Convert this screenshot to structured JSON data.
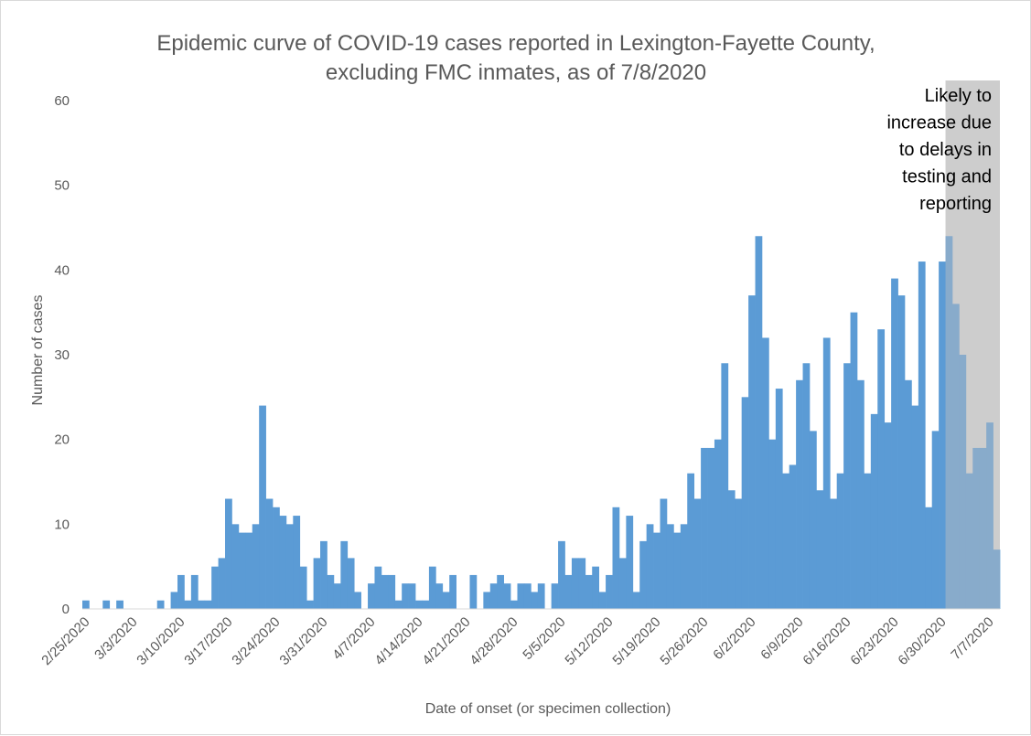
{
  "chart_data": {
    "type": "bar",
    "title_lines": [
      "Epidemic curve of COVID-19 cases reported in Lexington-Fayette County,",
      "excluding FMC inmates, as of 7/8/2020"
    ],
    "xlabel": "Date of onset (or specimen collection)",
    "ylabel": "Number of cases",
    "ylim": [
      0,
      60
    ],
    "y_ticks": [
      "0",
      "10",
      "20",
      "30",
      "40",
      "50",
      "60"
    ],
    "x_tick_labels": [
      "2/25/2020",
      "3/3/2020",
      "3/10/2020",
      "3/17/2020",
      "3/24/2020",
      "3/31/2020",
      "4/7/2020",
      "4/14/2020",
      "4/21/2020",
      "4/28/2020",
      "5/5/2020",
      "5/12/2020",
      "5/19/2020",
      "5/26/2020",
      "6/2/2020",
      "6/9/2020",
      "6/16/2020",
      "6/23/2020",
      "6/30/2020",
      "7/7/2020"
    ],
    "start_date": "2/25/2020",
    "values": [
      1,
      0,
      0,
      1,
      0,
      1,
      0,
      0,
      0,
      0,
      0,
      1,
      0,
      2,
      4,
      1,
      4,
      1,
      1,
      5,
      6,
      13,
      10,
      9,
      9,
      10,
      24,
      13,
      12,
      11,
      10,
      11,
      5,
      1,
      6,
      8,
      4,
      3,
      8,
      6,
      2,
      0,
      3,
      5,
      4,
      4,
      1,
      3,
      3,
      1,
      1,
      5,
      3,
      2,
      4,
      0,
      0,
      4,
      0,
      2,
      3,
      4,
      3,
      1,
      3,
      3,
      2,
      3,
      0,
      3,
      8,
      4,
      6,
      6,
      4,
      5,
      2,
      4,
      12,
      6,
      11,
      2,
      8,
      10,
      9,
      13,
      10,
      9,
      10,
      16,
      13,
      19,
      19,
      20,
      29,
      14,
      13,
      25,
      37,
      44,
      32,
      20,
      26,
      16,
      17,
      27,
      29,
      21,
      14,
      32,
      13,
      16,
      29,
      35,
      27,
      16,
      23,
      33,
      22,
      39,
      37,
      27,
      24,
      41,
      12,
      21,
      41,
      44,
      36,
      30,
      16,
      19,
      19,
      22,
      7
    ],
    "bar_color": "#5b9bd5",
    "shaded_region": {
      "start": "7/1/2020",
      "end": "7/8/2020",
      "color": "#bfbfbf",
      "note_lines": [
        "Likely to",
        "increase due",
        "to delays in",
        "testing and",
        "reporting"
      ]
    },
    "grid": false,
    "legend": "none"
  }
}
